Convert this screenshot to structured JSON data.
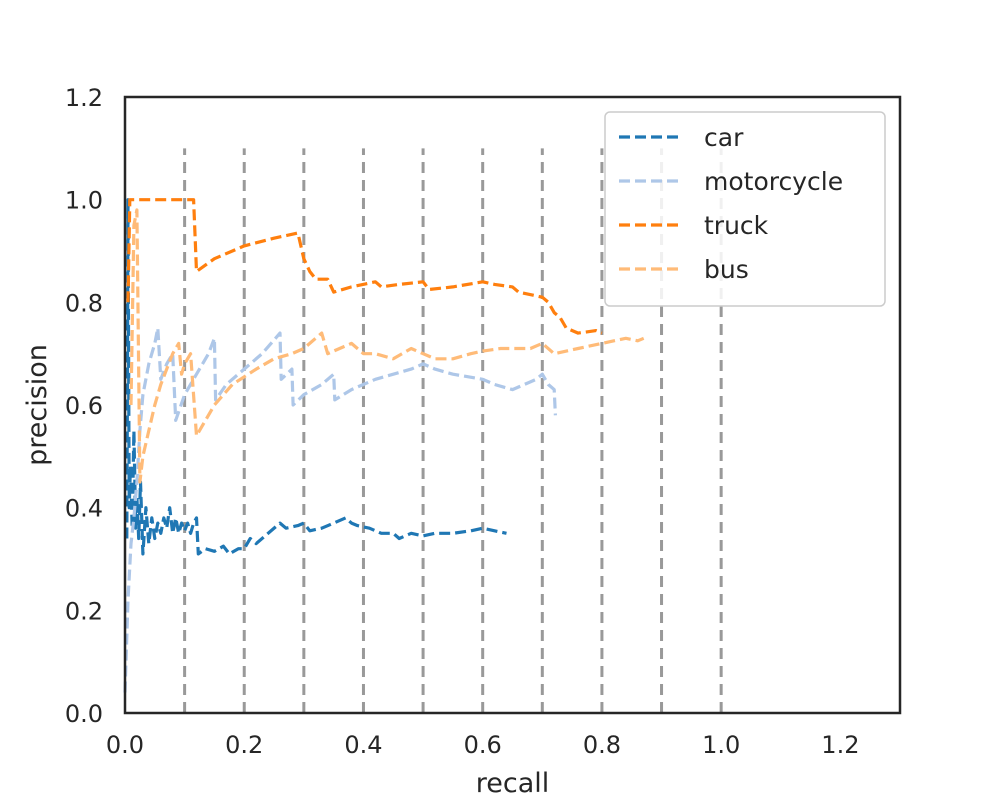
{
  "chart_data": {
    "type": "line",
    "title": "",
    "xlabel": "recall",
    "ylabel": "precision",
    "xlim": [
      0.0,
      1.3
    ],
    "ylim": [
      0.0,
      1.2
    ],
    "xticks": [
      "0.0",
      "0.2",
      "0.4",
      "0.6",
      "0.8",
      "1.0",
      "1.2"
    ],
    "yticks": [
      "0.0",
      "0.2",
      "0.4",
      "0.6",
      "0.8",
      "1.0",
      "1.2"
    ],
    "xtick_values": [
      0.0,
      0.2,
      0.4,
      0.6,
      0.8,
      1.0,
      1.2
    ],
    "ytick_values": [
      0.0,
      0.2,
      0.4,
      0.6,
      0.8,
      1.0,
      1.2
    ],
    "grid": false,
    "legend_position": "top-right",
    "reference_lines": {
      "orientation": "vertical",
      "x": [
        0.1,
        0.2,
        0.3,
        0.4,
        0.5,
        0.6,
        0.7,
        0.8,
        0.9,
        1.0
      ],
      "y_range": [
        0.0,
        1.1
      ],
      "color": "#999999",
      "style": "dashed"
    },
    "series": [
      {
        "name": "car",
        "color": "#1f77b4",
        "points": [
          [
            0.003,
            0.34
          ],
          [
            0.004,
            0.62
          ],
          [
            0.005,
            1.0
          ],
          [
            0.007,
            0.4
          ],
          [
            0.009,
            0.48
          ],
          [
            0.012,
            0.36
          ],
          [
            0.015,
            0.55
          ],
          [
            0.018,
            0.36
          ],
          [
            0.02,
            0.42
          ],
          [
            0.023,
            0.34
          ],
          [
            0.026,
            0.45
          ],
          [
            0.03,
            0.31
          ],
          [
            0.035,
            0.4
          ],
          [
            0.04,
            0.33
          ],
          [
            0.045,
            0.38
          ],
          [
            0.05,
            0.34
          ],
          [
            0.055,
            0.37
          ],
          [
            0.06,
            0.35
          ],
          [
            0.065,
            0.38
          ],
          [
            0.07,
            0.36
          ],
          [
            0.075,
            0.4
          ],
          [
            0.08,
            0.35
          ],
          [
            0.085,
            0.38
          ],
          [
            0.09,
            0.35
          ],
          [
            0.095,
            0.37
          ],
          [
            0.1,
            0.355
          ],
          [
            0.105,
            0.37
          ],
          [
            0.11,
            0.35
          ],
          [
            0.115,
            0.37
          ],
          [
            0.12,
            0.38
          ],
          [
            0.123,
            0.31
          ],
          [
            0.135,
            0.32
          ],
          [
            0.15,
            0.315
          ],
          [
            0.165,
            0.325
          ],
          [
            0.175,
            0.31
          ],
          [
            0.19,
            0.32
          ],
          [
            0.2,
            0.32
          ],
          [
            0.21,
            0.34
          ],
          [
            0.22,
            0.33
          ],
          [
            0.24,
            0.35
          ],
          [
            0.26,
            0.37
          ],
          [
            0.27,
            0.36
          ],
          [
            0.29,
            0.365
          ],
          [
            0.3,
            0.37
          ],
          [
            0.31,
            0.355
          ],
          [
            0.33,
            0.36
          ],
          [
            0.35,
            0.37
          ],
          [
            0.37,
            0.38
          ],
          [
            0.38,
            0.37
          ],
          [
            0.39,
            0.365
          ],
          [
            0.41,
            0.36
          ],
          [
            0.43,
            0.35
          ],
          [
            0.45,
            0.35
          ],
          [
            0.46,
            0.34
          ],
          [
            0.48,
            0.35
          ],
          [
            0.5,
            0.345
          ],
          [
            0.52,
            0.35
          ],
          [
            0.55,
            0.35
          ],
          [
            0.58,
            0.355
          ],
          [
            0.6,
            0.36
          ],
          [
            0.62,
            0.355
          ],
          [
            0.64,
            0.35
          ]
        ]
      },
      {
        "name": "motorcycle",
        "color": "#aec7e8",
        "points": [
          [
            0.0,
            0.04
          ],
          [
            0.005,
            0.22
          ],
          [
            0.01,
            0.33
          ],
          [
            0.015,
            0.38
          ],
          [
            0.02,
            0.45
          ],
          [
            0.025,
            0.55
          ],
          [
            0.03,
            0.62
          ],
          [
            0.04,
            0.68
          ],
          [
            0.05,
            0.72
          ],
          [
            0.055,
            0.75
          ],
          [
            0.06,
            0.65
          ],
          [
            0.07,
            0.68
          ],
          [
            0.08,
            0.7
          ],
          [
            0.085,
            0.57
          ],
          [
            0.1,
            0.62
          ],
          [
            0.12,
            0.66
          ],
          [
            0.14,
            0.7
          ],
          [
            0.15,
            0.73
          ],
          [
            0.152,
            0.61
          ],
          [
            0.17,
            0.64
          ],
          [
            0.2,
            0.67
          ],
          [
            0.23,
            0.7
          ],
          [
            0.26,
            0.74
          ],
          [
            0.262,
            0.65
          ],
          [
            0.28,
            0.67
          ],
          [
            0.282,
            0.6
          ],
          [
            0.3,
            0.62
          ],
          [
            0.33,
            0.64
          ],
          [
            0.35,
            0.66
          ],
          [
            0.352,
            0.61
          ],
          [
            0.38,
            0.63
          ],
          [
            0.42,
            0.65
          ],
          [
            0.45,
            0.66
          ],
          [
            0.48,
            0.67
          ],
          [
            0.5,
            0.68
          ],
          [
            0.52,
            0.67
          ],
          [
            0.55,
            0.66
          ],
          [
            0.6,
            0.65
          ],
          [
            0.62,
            0.64
          ],
          [
            0.65,
            0.63
          ],
          [
            0.69,
            0.65
          ],
          [
            0.7,
            0.66
          ],
          [
            0.71,
            0.64
          ],
          [
            0.72,
            0.63
          ],
          [
            0.722,
            0.58
          ]
        ]
      },
      {
        "name": "truck",
        "color": "#ff7f0e",
        "points": [
          [
            0.005,
            0.8
          ],
          [
            0.008,
            1.0
          ],
          [
            0.05,
            1.0
          ],
          [
            0.1,
            1.0
          ],
          [
            0.115,
            1.0
          ],
          [
            0.12,
            0.86
          ],
          [
            0.15,
            0.885
          ],
          [
            0.2,
            0.91
          ],
          [
            0.25,
            0.925
          ],
          [
            0.29,
            0.935
          ],
          [
            0.3,
            0.885
          ],
          [
            0.31,
            0.86
          ],
          [
            0.32,
            0.845
          ],
          [
            0.34,
            0.845
          ],
          [
            0.35,
            0.82
          ],
          [
            0.38,
            0.83
          ],
          [
            0.42,
            0.84
          ],
          [
            0.43,
            0.83
          ],
          [
            0.46,
            0.835
          ],
          [
            0.5,
            0.84
          ],
          [
            0.51,
            0.825
          ],
          [
            0.55,
            0.83
          ],
          [
            0.6,
            0.84
          ],
          [
            0.62,
            0.835
          ],
          [
            0.65,
            0.83
          ],
          [
            0.66,
            0.82
          ],
          [
            0.7,
            0.81
          ],
          [
            0.71,
            0.8
          ],
          [
            0.72,
            0.78
          ],
          [
            0.73,
            0.77
          ],
          [
            0.74,
            0.75
          ],
          [
            0.76,
            0.74
          ],
          [
            0.79,
            0.745
          ],
          [
            0.8,
            0.74
          ]
        ]
      },
      {
        "name": "bus",
        "color": "#ffbb78",
        "points": [
          [
            0.01,
            0.6
          ],
          [
            0.015,
            0.95
          ],
          [
            0.02,
            0.98
          ],
          [
            0.025,
            0.45
          ],
          [
            0.03,
            0.5
          ],
          [
            0.04,
            0.55
          ],
          [
            0.05,
            0.6
          ],
          [
            0.06,
            0.64
          ],
          [
            0.07,
            0.67
          ],
          [
            0.08,
            0.7
          ],
          [
            0.09,
            0.72
          ],
          [
            0.095,
            0.66
          ],
          [
            0.1,
            0.68
          ],
          [
            0.11,
            0.7
          ],
          [
            0.12,
            0.54
          ],
          [
            0.15,
            0.6
          ],
          [
            0.18,
            0.64
          ],
          [
            0.22,
            0.67
          ],
          [
            0.25,
            0.69
          ],
          [
            0.28,
            0.7
          ],
          [
            0.3,
            0.71
          ],
          [
            0.33,
            0.74
          ],
          [
            0.34,
            0.7
          ],
          [
            0.36,
            0.71
          ],
          [
            0.38,
            0.72
          ],
          [
            0.4,
            0.7
          ],
          [
            0.42,
            0.7
          ],
          [
            0.45,
            0.69
          ],
          [
            0.48,
            0.71
          ],
          [
            0.5,
            0.7
          ],
          [
            0.52,
            0.69
          ],
          [
            0.55,
            0.69
          ],
          [
            0.58,
            0.7
          ],
          [
            0.6,
            0.705
          ],
          [
            0.63,
            0.71
          ],
          [
            0.68,
            0.71
          ],
          [
            0.7,
            0.72
          ],
          [
            0.72,
            0.7
          ],
          [
            0.76,
            0.71
          ],
          [
            0.8,
            0.72
          ],
          [
            0.84,
            0.73
          ],
          [
            0.86,
            0.725
          ],
          [
            0.87,
            0.73
          ]
        ]
      }
    ]
  }
}
